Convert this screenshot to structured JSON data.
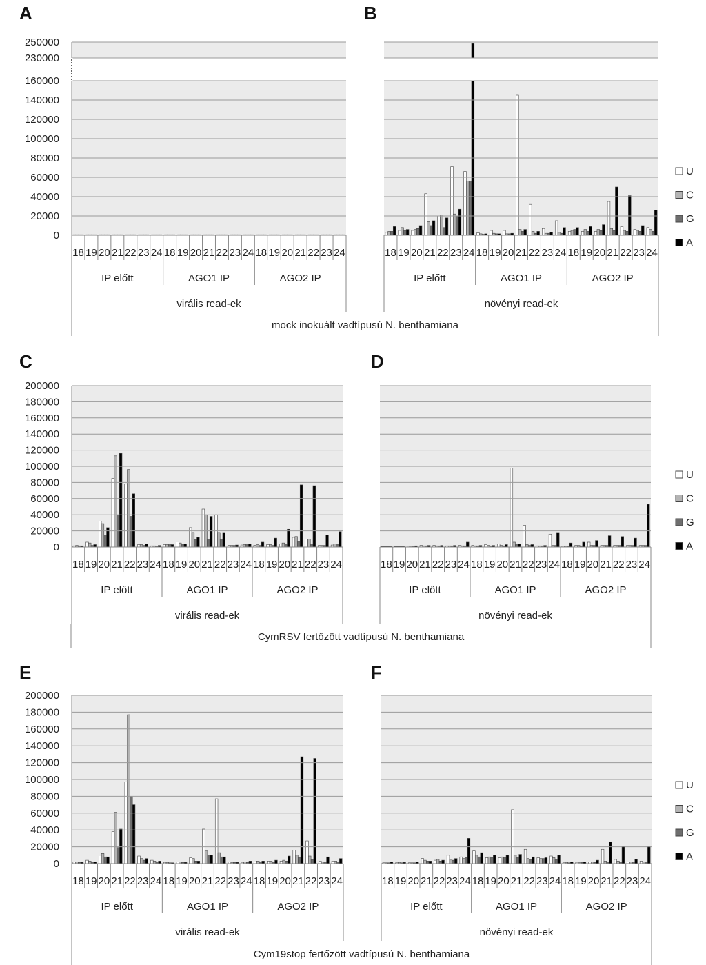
{
  "figure": {
    "legend": [
      "U",
      "C",
      "G",
      "A"
    ],
    "rows": [
      {
        "caption": "mock inokuált vadtípusú N. benthamiana"
      },
      {
        "caption": "CymRSV fertőzött vadtípusú N. benthamiana"
      },
      {
        "caption": "Cym19stop fertőzött vadtípusú N. benthamiana"
      }
    ]
  },
  "colors": {
    "U": "#ffffff",
    "C": "#b4b4b4",
    "G": "#6e6e6e",
    "A": "#000000",
    "plot_bg": "#ebebeb",
    "grid": "#9a9a9a"
  },
  "chart_data": [
    {
      "panel": "A",
      "type": "bar",
      "reads": "virális read-ek",
      "groups": [
        "IP előtt",
        "AGO1 IP",
        "AGO2 IP"
      ],
      "categories": [
        "18",
        "19",
        "20",
        "21",
        "22",
        "23",
        "24"
      ],
      "y_ticks": [
        "0",
        "20000",
        "40000",
        "60000",
        "80000",
        "100000",
        "120000",
        "140000",
        "160000",
        "230000",
        "250000"
      ],
      "ylim": [
        0,
        250000
      ],
      "broken_axis": [
        160000,
        230000
      ],
      "series": [
        {
          "name": "U",
          "values": [
            [
              0,
              0,
              0,
              0,
              0,
              0,
              0
            ],
            [
              0,
              0,
              0,
              0,
              0,
              0,
              0
            ],
            [
              0,
              0,
              0,
              0,
              0,
              0,
              0
            ]
          ]
        },
        {
          "name": "C",
          "values": [
            [
              0,
              0,
              0,
              0,
              0,
              0,
              0
            ],
            [
              0,
              0,
              0,
              0,
              0,
              0,
              0
            ],
            [
              0,
              0,
              0,
              0,
              0,
              0,
              0
            ]
          ]
        },
        {
          "name": "G",
          "values": [
            [
              0,
              0,
              0,
              0,
              0,
              0,
              0
            ],
            [
              0,
              0,
              0,
              0,
              0,
              0,
              0
            ],
            [
              0,
              0,
              0,
              0,
              0,
              0,
              0
            ]
          ]
        },
        {
          "name": "A",
          "values": [
            [
              0,
              0,
              0,
              0,
              0,
              0,
              0
            ],
            [
              0,
              0,
              0,
              0,
              0,
              0,
              0
            ],
            [
              0,
              0,
              0,
              0,
              0,
              0,
              0
            ]
          ]
        }
      ]
    },
    {
      "panel": "B",
      "type": "bar",
      "reads": "növényi read-ek",
      "groups": [
        "IP előtt",
        "AGO1 IP",
        "AGO2 IP"
      ],
      "categories": [
        "18",
        "19",
        "20",
        "21",
        "22",
        "23",
        "24"
      ],
      "ylim": [
        0,
        250000
      ],
      "broken_axis": [
        160000,
        230000
      ],
      "series": [
        {
          "name": "U",
          "values": [
            [
              3000,
              5000,
              5000,
              43000,
              20000,
              71000,
              66000
            ],
            [
              2500,
              5000,
              5000,
              145000,
              32000,
              7000,
              15000
            ],
            [
              4000,
              4000,
              4000,
              35000,
              9000,
              6000,
              8000
            ]
          ]
        },
        {
          "name": "C",
          "values": [
            [
              4000,
              8000,
              6000,
              14000,
              21000,
              22000,
              56000
            ],
            [
              1500,
              2000,
              1500,
              6000,
              4000,
              2000,
              3000
            ],
            [
              5000,
              6000,
              6000,
              7000,
              5000,
              5000,
              6000
            ]
          ]
        },
        {
          "name": "G",
          "values": [
            [
              4000,
              5000,
              7000,
              10000,
              8000,
              20000,
              56000
            ],
            [
              1000,
              1500,
              1500,
              4000,
              2000,
              2000,
              2000
            ],
            [
              6000,
              4000,
              5000,
              5000,
              4000,
              4000,
              4000
            ]
          ]
        },
        {
          "name": "A",
          "values": [
            [
              9000,
              6000,
              10000,
              15000,
              18000,
              27000,
              248000
            ],
            [
              1500,
              1500,
              2000,
              6000,
              4000,
              3000,
              8000
            ],
            [
              8000,
              9000,
              11000,
              50000,
              41000,
              10000,
              26000
            ]
          ]
        }
      ]
    },
    {
      "panel": "C",
      "type": "bar",
      "reads": "virális read-ek",
      "groups": [
        "IP előtt",
        "AGO1 IP",
        "AGO2 IP"
      ],
      "categories": [
        "18",
        "19",
        "20",
        "21",
        "22",
        "23",
        "24"
      ],
      "y_ticks": [
        "0",
        "20000",
        "40000",
        "60000",
        "80000",
        "100000",
        "120000",
        "140000",
        "160000",
        "180000",
        "200000"
      ],
      "ylim": [
        0,
        200000
      ],
      "series": [
        {
          "name": "U",
          "values": [
            [
              1500,
              6000,
              32000,
              85000,
              78000,
              3000,
              1500
            ],
            [
              3000,
              7000,
              24000,
              47000,
              40000,
              2000,
              2500
            ],
            [
              2000,
              3000,
              4000,
              12000,
              10000,
              2000,
              2500
            ]
          ]
        },
        {
          "name": "C",
          "values": [
            [
              2000,
              5000,
              29000,
              113000,
              96000,
              3000,
              1500
            ],
            [
              3000,
              5000,
              18000,
              40000,
              18000,
              2000,
              3000
            ],
            [
              3000,
              3000,
              5000,
              13000,
              10000,
              2000,
              4000
            ]
          ]
        },
        {
          "name": "G",
          "values": [
            [
              1500,
              2000,
              15000,
              40000,
              38000,
              2000,
              1000
            ],
            [
              4000,
              3000,
              9000,
              10000,
              10000,
              2000,
              4000
            ],
            [
              2000,
              2000,
              3000,
              7000,
              4000,
              2000,
              3000
            ]
          ]
        },
        {
          "name": "A",
          "values": [
            [
              1500,
              3000,
              24000,
              116000,
              66000,
              4000,
              2000
            ],
            [
              3000,
              4000,
              12000,
              38000,
              18000,
              2500,
              4000
            ],
            [
              6000,
              11000,
              22000,
              77000,
              76000,
              15000,
              19000
            ]
          ]
        }
      ]
    },
    {
      "panel": "D",
      "type": "bar",
      "reads": "növényi read-ek",
      "groups": [
        "IP előtt",
        "AGO1 IP",
        "AGO2 IP"
      ],
      "categories": [
        "18",
        "19",
        "20",
        "21",
        "22",
        "23",
        "24"
      ],
      "ylim": [
        0,
        200000
      ],
      "series": [
        {
          "name": "U",
          "values": [
            [
              500,
              500,
              1000,
              2000,
              2000,
              1500,
              2000
            ],
            [
              2000,
              3000,
              4000,
              98000,
              27000,
              1500,
              16000
            ],
            [
              1000,
              2000,
              6000,
              2000,
              2000,
              2000,
              2000
            ]
          ]
        },
        {
          "name": "C",
          "values": [
            [
              500,
              500,
              1000,
              1500,
              1500,
              1500,
              1500
            ],
            [
              1500,
              2000,
              2000,
              6000,
              3000,
              1500,
              2000
            ],
            [
              1000,
              2000,
              2000,
              2000,
              2000,
              2000,
              2000
            ]
          ]
        },
        {
          "name": "G",
          "values": [
            [
              500,
              500,
              1000,
              1500,
              1500,
              1500,
              1500
            ],
            [
              1500,
              1500,
              1500,
              3000,
              2000,
              1500,
              2000
            ],
            [
              1000,
              1500,
              2000,
              2000,
              2000,
              2000,
              2000
            ]
          ]
        },
        {
          "name": "A",
          "values": [
            [
              500,
              500,
              1500,
              2000,
              2000,
              2000,
              6000
            ],
            [
              2000,
              2000,
              3000,
              4000,
              3000,
              2000,
              18000
            ],
            [
              5000,
              6000,
              8000,
              14000,
              13000,
              11000,
              53000
            ]
          ]
        }
      ]
    },
    {
      "panel": "E",
      "type": "bar",
      "reads": "virális read-ek",
      "groups": [
        "IP előtt",
        "AGO1 IP",
        "AGO2 IP"
      ],
      "categories": [
        "18",
        "19",
        "20",
        "21",
        "22",
        "23",
        "24"
      ],
      "y_ticks": [
        "0",
        "20000",
        "40000",
        "60000",
        "80000",
        "100000",
        "120000",
        "140000",
        "160000",
        "180000",
        "200000"
      ],
      "ylim": [
        0,
        200000
      ],
      "series": [
        {
          "name": "U",
          "values": [
            [
              2000,
              4000,
              10000,
              38000,
              97000,
              9000,
              4000
            ],
            [
              1500,
              2000,
              7000,
              41000,
              77000,
              2000,
              1500
            ],
            [
              2000,
              3000,
              3000,
              16000,
              27000,
              3000,
              3000
            ]
          ]
        },
        {
          "name": "C",
          "values": [
            [
              2000,
              3000,
              12000,
              61000,
              177000,
              6000,
              3000
            ],
            [
              1500,
              2000,
              6000,
              15000,
              13000,
              1500,
              2000
            ],
            [
              3000,
              3000,
              4000,
              10000,
              9000,
              2000,
              3000
            ]
          ]
        },
        {
          "name": "G",
          "values": [
            [
              1500,
              2000,
              8000,
              19000,
              80000,
              4000,
              2000
            ],
            [
              1000,
              1500,
              3000,
              10000,
              8000,
              1500,
              1500
            ],
            [
              2000,
              2000,
              3000,
              7000,
              5000,
              2000,
              2000
            ]
          ]
        },
        {
          "name": "A",
          "values": [
            [
              1500,
              2000,
              8000,
              41000,
              70000,
              6000,
              3000
            ],
            [
              1000,
              1500,
              3000,
              10000,
              8000,
              1500,
              3000
            ],
            [
              3000,
              4000,
              9000,
              127000,
              125000,
              8000,
              6000
            ]
          ]
        }
      ]
    },
    {
      "panel": "F",
      "type": "bar",
      "reads": "növényi read-ek",
      "groups": [
        "IP előtt",
        "AGO1 IP",
        "AGO2 IP"
      ],
      "categories": [
        "18",
        "19",
        "20",
        "21",
        "22",
        "23",
        "24"
      ],
      "ylim": [
        0,
        200000
      ],
      "series": [
        {
          "name": "U",
          "values": [
            [
              1000,
              1000,
              1000,
              6000,
              4000,
              10000,
              8000
            ],
            [
              15000,
              7000,
              7000,
              64000,
              17000,
              7000,
              9000
            ],
            [
              1000,
              1500,
              2000,
              17000,
              5000,
              2000,
              3000
            ]
          ]
        },
        {
          "name": "C",
          "values": [
            [
              1000,
              1500,
              1000,
              4000,
              5000,
              5000,
              6000
            ],
            [
              10000,
              8000,
              8000,
              10000,
              6000,
              6000,
              7000
            ],
            [
              1500,
              1500,
              2000,
              3000,
              3000,
              2000,
              2000
            ]
          ]
        },
        {
          "name": "G",
          "values": [
            [
              1000,
              1000,
              1000,
              3000,
              3000,
              4000,
              7000
            ],
            [
              8000,
              7000,
              7000,
              7000,
              5000,
              6000,
              5000
            ],
            [
              1000,
              1500,
              1500,
              2000,
              2000,
              2000,
              2000
            ]
          ]
        },
        {
          "name": "A",
          "values": [
            [
              2000,
              1500,
              2000,
              3000,
              4000,
              6000,
              30000
            ],
            [
              13000,
              10000,
              10000,
              11000,
              8000,
              7000,
              10000
            ],
            [
              2000,
              2000,
              4000,
              26000,
              21000,
              5000,
              21000
            ]
          ]
        }
      ]
    }
  ]
}
